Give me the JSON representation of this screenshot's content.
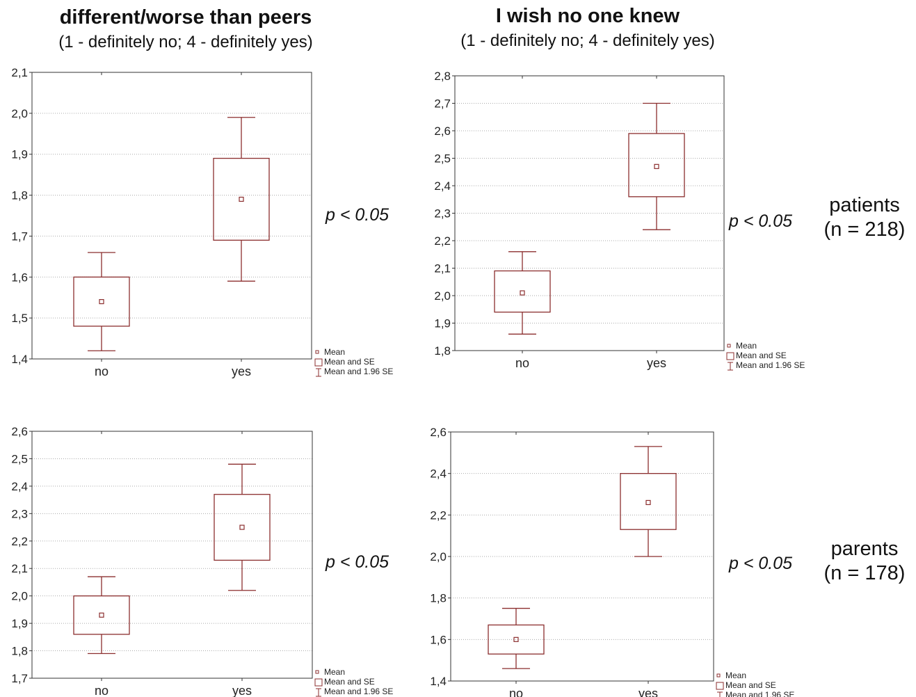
{
  "columns": [
    {
      "title": "different/worse than peers",
      "subtitle": "(1 - definitely no; 4 - definitely yes)"
    },
    {
      "title": "I wish no one knew",
      "subtitle": "(1 - definitely no; 4 - definitely yes)"
    }
  ],
  "groups": [
    {
      "name": "patients",
      "n": "(n = 218)"
    },
    {
      "name": "parents",
      "n": "(n = 178)"
    }
  ],
  "p_values": [
    "p < 0.05",
    "p < 0.05",
    "p < 0.05",
    "p < 0.05"
  ],
  "colors": {
    "box": "#8b2e2e",
    "grid": "#aaaaaa",
    "frame": "#333333"
  },
  "legend": {
    "mean": "Mean",
    "se": "Mean and SE",
    "ci": "Mean and 1.96 SE"
  },
  "chart_data": [
    {
      "type": "box",
      "categories": [
        "no",
        "yes"
      ],
      "ylim": [
        1.4,
        2.1
      ],
      "yticks": [
        "1,4",
        "1,5",
        "1,6",
        "1,7",
        "1,8",
        "1,9",
        "2,0",
        "2,1"
      ],
      "series": [
        {
          "category": "no",
          "mean": 1.54,
          "se_low": 1.48,
          "se_high": 1.6,
          "ci_low": 1.42,
          "ci_high": 1.66
        },
        {
          "category": "yes",
          "mean": 1.79,
          "se_low": 1.69,
          "se_high": 1.89,
          "ci_low": 1.59,
          "ci_high": 1.99
        }
      ],
      "grid": true,
      "legend_position": "bottom-right"
    },
    {
      "type": "box",
      "categories": [
        "no",
        "yes"
      ],
      "ylim": [
        1.8,
        2.8
      ],
      "yticks": [
        "1,8",
        "1,9",
        "2,0",
        "2,1",
        "2,2",
        "2,3",
        "2,4",
        "2,5",
        "2,6",
        "2,7",
        "2,8"
      ],
      "series": [
        {
          "category": "no",
          "mean": 2.01,
          "se_low": 1.94,
          "se_high": 2.09,
          "ci_low": 1.86,
          "ci_high": 2.16
        },
        {
          "category": "yes",
          "mean": 2.47,
          "se_low": 2.36,
          "se_high": 2.59,
          "ci_low": 2.24,
          "ci_high": 2.7
        }
      ],
      "grid": true,
      "legend_position": "bottom-right"
    },
    {
      "type": "box",
      "categories": [
        "no",
        "yes"
      ],
      "ylim": [
        1.7,
        2.6
      ],
      "yticks": [
        "1,7",
        "1,8",
        "1,9",
        "2,0",
        "2,1",
        "2,2",
        "2,3",
        "2,4",
        "2,5",
        "2,6"
      ],
      "series": [
        {
          "category": "no",
          "mean": 1.93,
          "se_low": 1.86,
          "se_high": 2.0,
          "ci_low": 1.79,
          "ci_high": 2.07
        },
        {
          "category": "yes",
          "mean": 2.25,
          "se_low": 2.13,
          "se_high": 2.37,
          "ci_low": 2.02,
          "ci_high": 2.48
        }
      ],
      "grid": true,
      "legend_position": "bottom-right"
    },
    {
      "type": "box",
      "categories": [
        "no",
        "yes"
      ],
      "ylim": [
        1.4,
        2.6
      ],
      "yticks": [
        "1,4",
        "1,6",
        "1,8",
        "2,0",
        "2,2",
        "2,4",
        "2,6"
      ],
      "series": [
        {
          "category": "no",
          "mean": 1.6,
          "se_low": 1.53,
          "se_high": 1.67,
          "ci_low": 1.46,
          "ci_high": 1.75
        },
        {
          "category": "yes",
          "mean": 2.26,
          "se_low": 2.13,
          "se_high": 2.4,
          "ci_low": 2.0,
          "ci_high": 2.53
        }
      ],
      "grid": true,
      "legend_position": "bottom-right"
    }
  ]
}
